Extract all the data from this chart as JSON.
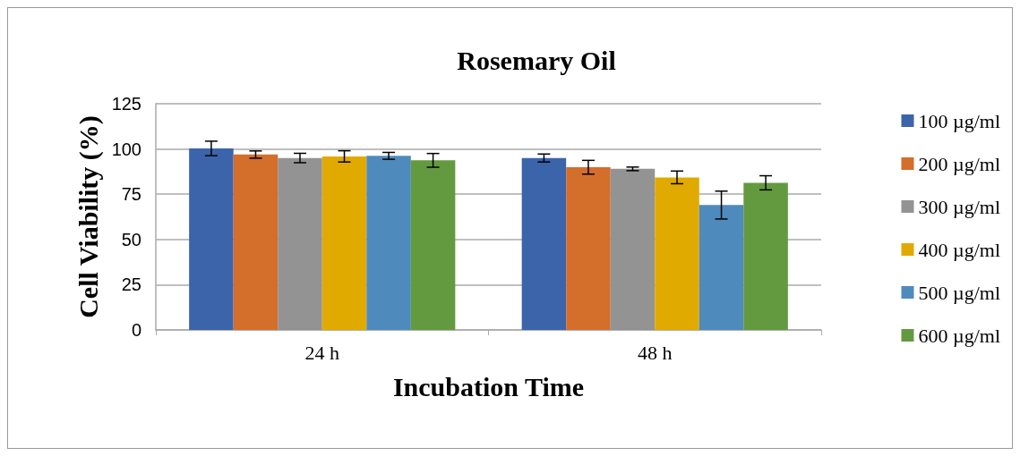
{
  "chart_data": {
    "type": "bar",
    "title": "Rosemary Oil",
    "xlabel": "Incubation Time",
    "ylabel": "Cell Viability (%)",
    "categories": [
      "24 h",
      "48 h"
    ],
    "series": [
      {
        "name": "100 µg/ml",
        "color": "#3c64ab",
        "values": [
          100.3,
          95
        ],
        "errors": [
          4,
          2.2
        ]
      },
      {
        "name": "200 µg/ml",
        "color": "#d46e2b",
        "values": [
          96.9,
          89.9
        ],
        "errors": [
          2,
          3.8
        ]
      },
      {
        "name": "300 µg/ml",
        "color": "#939393",
        "values": [
          95,
          89
        ],
        "errors": [
          2.6,
          1
        ]
      },
      {
        "name": "400 µg/ml",
        "color": "#e1aa00",
        "values": [
          95.9,
          84.3
        ],
        "errors": [
          3.1,
          3.5
        ]
      },
      {
        "name": "500 µg/ml",
        "color": "#4f8abd",
        "values": [
          96.2,
          69
        ],
        "errors": [
          1.9,
          7.7
        ]
      },
      {
        "name": "600 µg/ml",
        "color": "#639a3f",
        "values": [
          93.7,
          81.3
        ],
        "errors": [
          3.8,
          3.9
        ]
      }
    ],
    "ylim": [
      0,
      125
    ],
    "yticks": [
      0,
      25,
      50,
      75,
      100,
      125
    ],
    "grid": "y",
    "legend": "right"
  }
}
